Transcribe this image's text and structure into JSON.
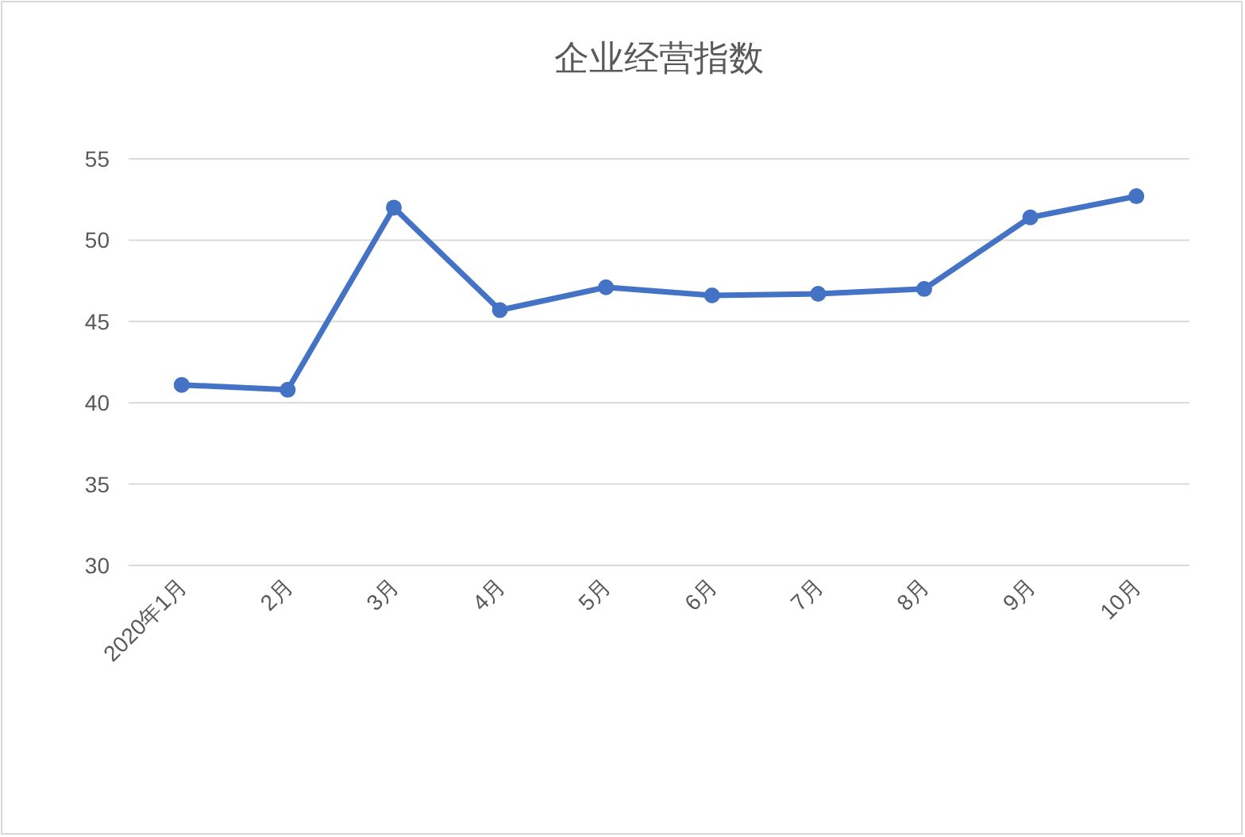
{
  "chart_data": {
    "type": "line",
    "title": "企业经营指数",
    "categories": [
      "2020年1月",
      "2月",
      "3月",
      "4月",
      "5月",
      "6月",
      "7月",
      "8月",
      "9月",
      "10月"
    ],
    "series": [
      {
        "color": "#4472c4",
        "values": [
          41.1,
          40.8,
          52.0,
          45.7,
          47.1,
          46.6,
          46.7,
          47.0,
          51.4,
          52.7
        ]
      }
    ],
    "ylim": [
      30,
      55
    ],
    "yticks": [
      30,
      35,
      40,
      45,
      50,
      55
    ],
    "grid": "y",
    "marker": "circle",
    "line_style": "solid"
  }
}
